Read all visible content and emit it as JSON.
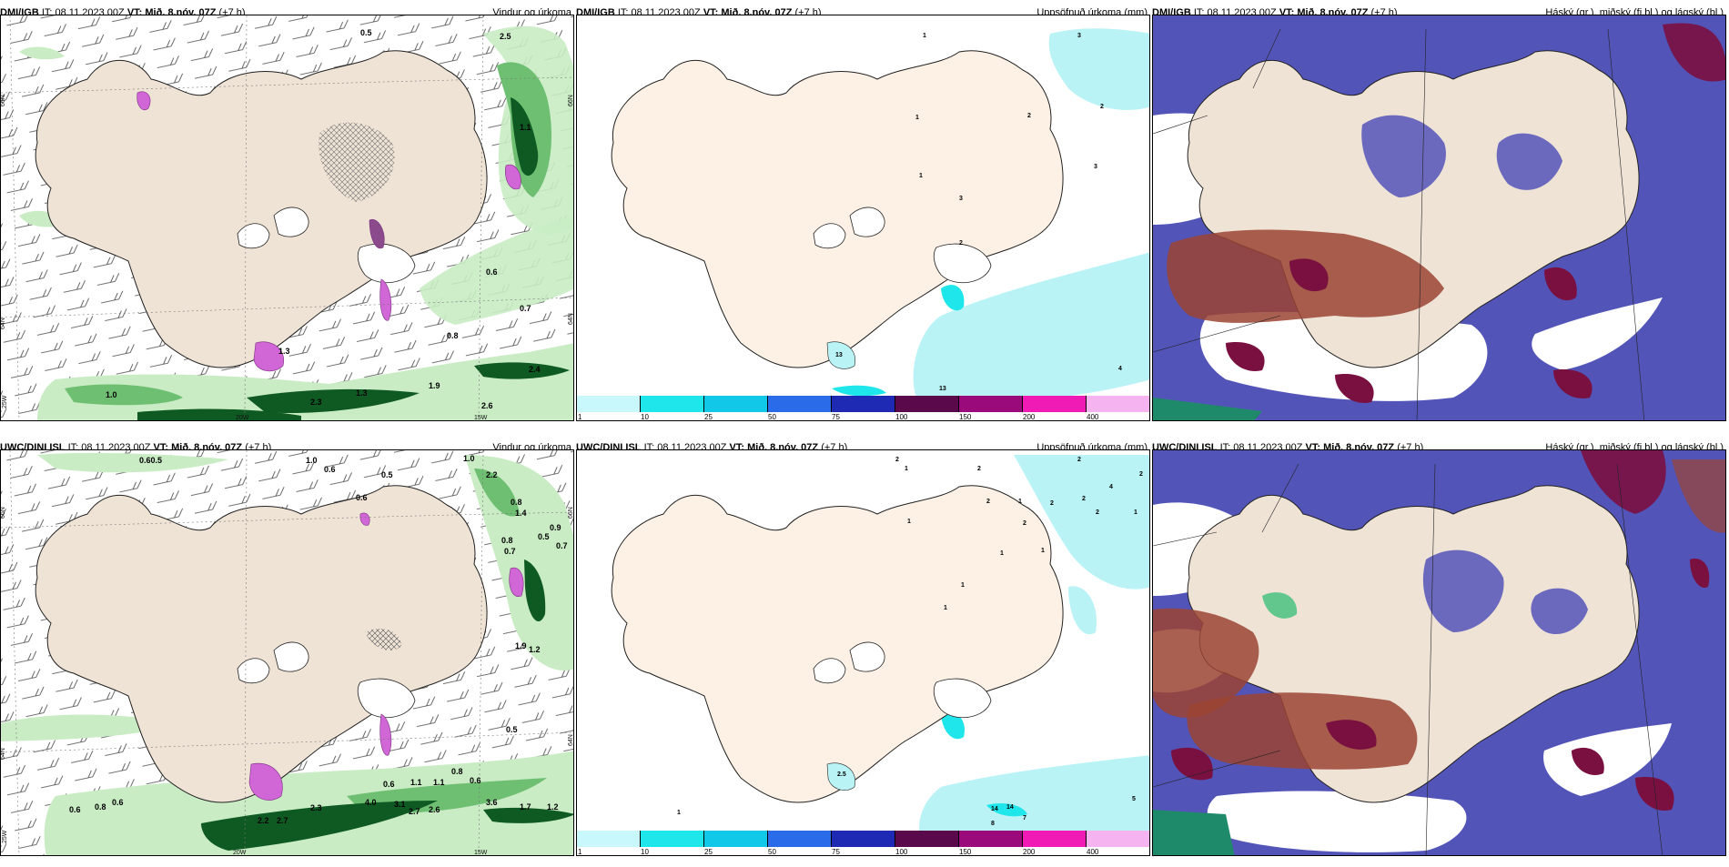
{
  "panels": [
    {
      "id": "p1",
      "source": "DMI/IGB",
      "it": "IT: 08.11.2023 00Z",
      "vt_label": "VT:",
      "vt": "Mið. 8.nóv. 07Z",
      "lead": "(+7 h)",
      "title": "Vindur og úrkoma"
    },
    {
      "id": "p2",
      "source": "DMI/IGB",
      "it": "IT: 08.11.2023 00Z",
      "vt_label": "VT:",
      "vt": "Mið. 8.nóv. 07Z",
      "lead": "(+7 h)",
      "title": "Uppsöfnuð úrkoma (mm)"
    },
    {
      "id": "p3",
      "source": "DMI/IGB",
      "it": "IT: 08.11.2023 00Z",
      "vt_label": "VT:",
      "vt": "Mið. 8.nóv. 07Z",
      "lead": "(+7 h)",
      "title": "Háský (gr.), miðský (fj.bl.) og lágský (bl.)"
    },
    {
      "id": "p4",
      "source": "UWC/DINI ISL",
      "it": "IT: 08.11.2023 00Z",
      "vt_label": "VT:",
      "vt": "Mið. 8.nóv. 07Z",
      "lead": "(+7 h)",
      "title": "Vindur og úrkoma"
    },
    {
      "id": "p5",
      "source": "UWC/DINI ISL",
      "it": "IT: 08.11.2023 00Z",
      "vt_label": "VT:",
      "vt": "Mið. 8.nóv. 07Z",
      "lead": "(+7 h)",
      "title": "Uppsöfnuð úrkoma (mm)"
    },
    {
      "id": "p6",
      "source": "UWC/DINI ISL",
      "it": "IT: 08.11.2023 00Z",
      "vt_label": "VT:",
      "vt": "Mið. 8.nóv. 07Z",
      "lead": "(+7 h)",
      "title": "Háský (gr.), miðský (fj.bl.) og lágský (bl.)"
    }
  ],
  "axis_labels": {
    "n66": "66N",
    "n64": "64N",
    "w25": "25W",
    "w20": "20W",
    "w15": "15W"
  },
  "colorbar": {
    "ticks": [
      "1",
      "10",
      "25",
      "50",
      "75",
      "100",
      "150",
      "200",
      "400"
    ],
    "colors": [
      "#c8f8fb",
      "#1ee6ea",
      "#12c8e8",
      "#2a6bea",
      "#1e2ab4",
      "#5a0a4a",
      "#9a0a7a",
      "#f01ab4",
      "#f5b4f0"
    ]
  },
  "colors": {
    "land": "#efe3d6",
    "land_light": "#fdf1e6",
    "green_light": "#c9ecc4",
    "green_mid": "#6fbf73",
    "green_dark": "#0f5a23",
    "magenta": "#d166d6",
    "cyan": "#b9f3f6",
    "cloud_blue": "#5254b8",
    "cloud_red": "#9b4433",
    "cloud_dark": "#7a1040"
  },
  "wind_labels": {
    "p1": [
      "0.5",
      "2.5",
      "1.1",
      "0.6",
      "0.7",
      "0.8",
      "2.4",
      "1.9",
      "1.0",
      "2.3",
      "1.3",
      "2.6",
      "1.3"
    ],
    "p4": [
      "0.60.5",
      "1.0",
      "0.6",
      "0.5",
      "0.6",
      "1.0",
      "2.2",
      "0.8",
      "1.4",
      "0.8",
      "0.5",
      "0.9",
      "0.7",
      "0.7",
      "1.9",
      "1.2",
      "0.5",
      "0.8",
      "0.6",
      "1.1",
      "1.1",
      "0.6",
      "4.0",
      "3.1",
      "2.7",
      "2.6",
      "2.3",
      "2.2",
      "2.7",
      "0.6",
      "0.8",
      "0.6",
      "3.6",
      "1.7",
      "1.2"
    ]
  },
  "precip_labels": {
    "p2": [
      "1",
      "3",
      "2",
      "2",
      "1",
      "1",
      "3",
      "3",
      "2",
      "13",
      "4",
      "13"
    ],
    "p5": [
      "2",
      "1",
      "2",
      "2",
      "2",
      "4",
      "2",
      "2",
      "1",
      "2",
      "2",
      "1",
      "1",
      "2",
      "1",
      "1",
      "1",
      "1",
      "5",
      "1",
      "14",
      "14",
      "8",
      "7",
      "2.5"
    ]
  }
}
